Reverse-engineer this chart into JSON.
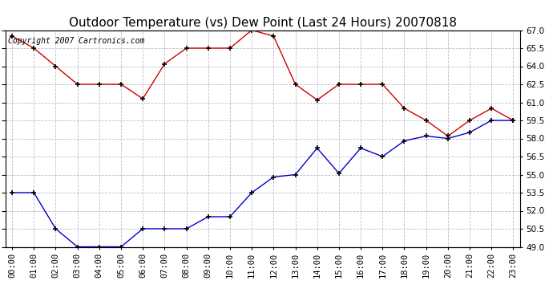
{
  "title": "Outdoor Temperature (vs) Dew Point (Last 24 Hours) 20070818",
  "copyright_text": "Copyright 2007 Cartronics.com",
  "hours": [
    "00:00",
    "01:00",
    "02:00",
    "03:00",
    "04:00",
    "05:00",
    "06:00",
    "07:00",
    "08:00",
    "09:00",
    "10:00",
    "11:00",
    "12:00",
    "13:00",
    "14:00",
    "15:00",
    "16:00",
    "17:00",
    "18:00",
    "19:00",
    "20:00",
    "21:00",
    "22:00",
    "23:00"
  ],
  "temp": [
    66.5,
    65.5,
    64.0,
    62.5,
    62.5,
    62.5,
    61.3,
    64.2,
    65.5,
    65.5,
    65.5,
    67.0,
    66.5,
    62.5,
    61.2,
    62.5,
    62.5,
    62.5,
    60.5,
    59.5,
    58.2,
    59.5,
    60.5,
    59.5
  ],
  "dew": [
    53.5,
    53.5,
    50.5,
    49.0,
    49.0,
    49.0,
    50.5,
    50.5,
    50.5,
    51.5,
    51.5,
    53.5,
    54.8,
    55.0,
    57.2,
    55.1,
    57.2,
    56.5,
    57.8,
    58.2,
    58.0,
    58.5,
    59.5,
    59.5
  ],
  "temp_color": "#cc0000",
  "dew_color": "#0000cc",
  "bg_color": "#ffffff",
  "plot_bg_color": "#ffffff",
  "grid_color": "#bbbbcc",
  "ylim_min": 49.0,
  "ylim_max": 67.0,
  "yticks": [
    49.0,
    50.5,
    52.0,
    53.5,
    55.0,
    56.5,
    58.0,
    59.5,
    61.0,
    62.5,
    64.0,
    65.5,
    67.0
  ],
  "title_fontsize": 11,
  "copyright_fontsize": 7,
  "tick_fontsize": 7.5
}
